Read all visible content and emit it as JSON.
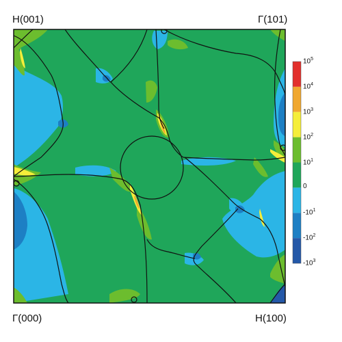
{
  "corner_labels": {
    "top_left": "H(001)",
    "top_right": "Γ(101)",
    "bottom_left": "Γ(000)",
    "bottom_right": "H(100)"
  },
  "colorbar": {
    "levels": [
      {
        "label": "10",
        "exp": "5",
        "color": "#e2302c"
      },
      {
        "label": "10",
        "exp": "4",
        "color": "#f0a830"
      },
      {
        "label": "10",
        "exp": "3",
        "color": "#f5ee3a"
      },
      {
        "label": "10",
        "exp": "2",
        "color": "#6cbd2e"
      },
      {
        "label": "10",
        "exp": "1",
        "color": "#1fa65a"
      },
      {
        "label": "0",
        "exp": "",
        "color": "#2bb5e6"
      },
      {
        "label": "-10",
        "exp": "1",
        "color": "#1d7fc4"
      },
      {
        "label": "-10",
        "exp": "2",
        "color": "#2458a8"
      },
      {
        "label": "-10",
        "exp": "3",
        "color": ""
      }
    ]
  },
  "colors": {
    "background_green": "#1fa65a",
    "light_blue": "#2bb5e6",
    "mid_blue": "#1d7fc4",
    "dark_blue": "#2458a8",
    "light_green": "#6cbd2e",
    "yellow": "#f5ee3a",
    "orange": "#f0a830",
    "red": "#e2302c",
    "line": "#111111"
  }
}
